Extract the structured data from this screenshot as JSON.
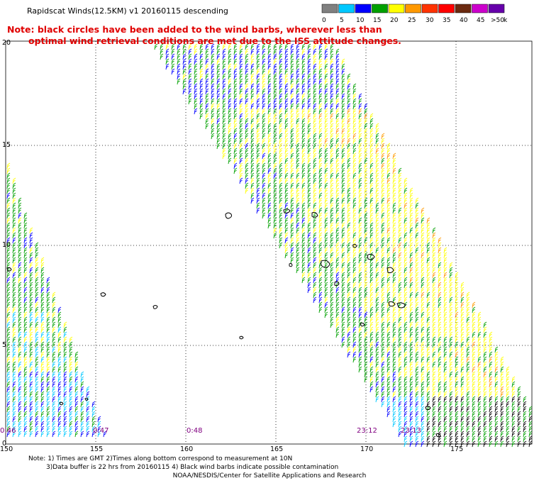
{
  "title": "Rapidscat Winds(12.5KM) v1 20160115 descending",
  "note_red": {
    "line1": "Note: black circles have been added to the wind barbs, wherever less than",
    "line2": "optimal wind retrieval conditions are met due to the ISS attitude changes."
  },
  "colorbar": {
    "unit": "knots",
    "labels": [
      "0",
      "5",
      "10",
      "15",
      "20",
      "25",
      "30",
      "35",
      "40",
      "45",
      ">50"
    ],
    "colors": [
      "#808080",
      "#00c8ff",
      "#0000ff",
      "#00a000",
      "#ffff00",
      "#ff9900",
      "#ff3300",
      "#ff0000",
      "#6b2a10",
      "#cc00cc",
      "#6600aa"
    ]
  },
  "axes": {
    "lon_labels": [
      "150",
      "155",
      "160",
      "165",
      "170",
      "175"
    ],
    "lat_labels": [
      "0",
      "5",
      "10",
      "15",
      "20"
    ]
  },
  "time_labels": [
    "0:46",
    "0:47",
    "0:48",
    "23:12",
    "23:13"
  ],
  "footer": {
    "line1": "Note: 1) Times are GMT 2)Times along bottom correspond to measurement at 10N",
    "line2": "3)Data buffer is 22 hrs from 20160115 4) Black wind barbs indicate possible contamination",
    "line3": "NOAA/NESDIS/Center for Satellite Applications and Research"
  }
}
